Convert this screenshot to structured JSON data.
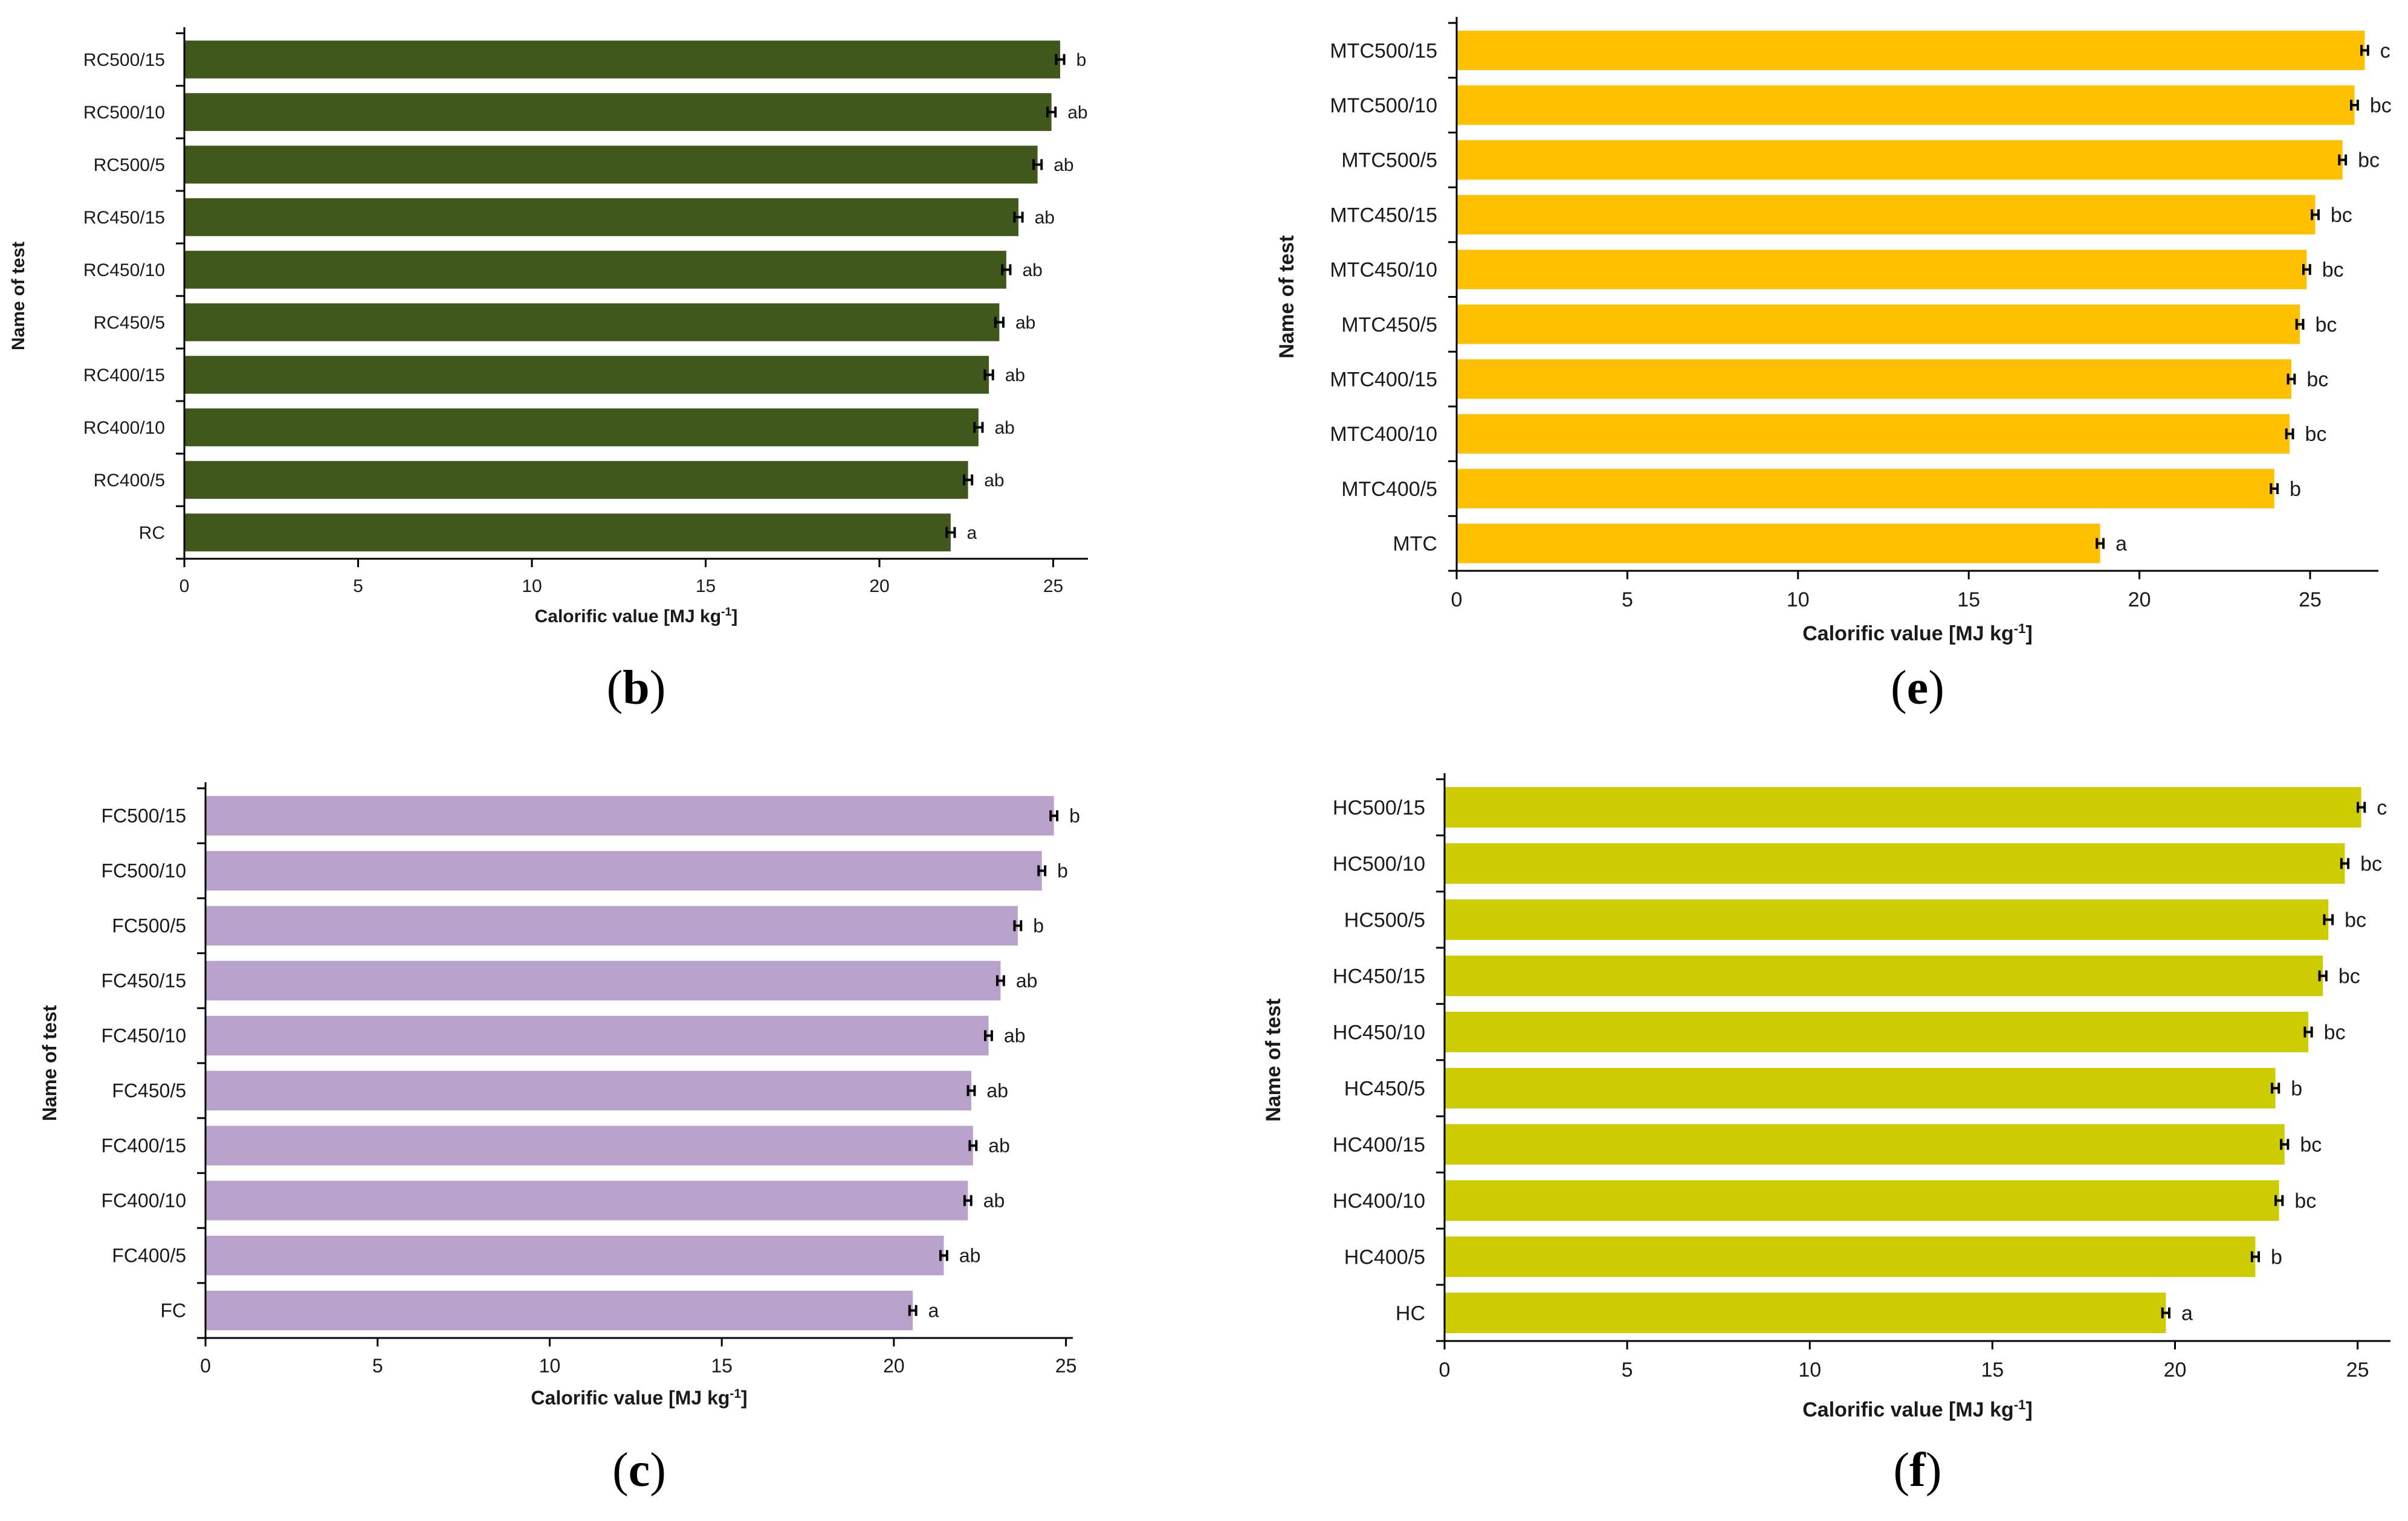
{
  "chart_data": [
    {
      "id": "b",
      "type": "bar",
      "orientation": "horizontal",
      "panel_label": "b",
      "bar_color": "#41581c",
      "categories": [
        "RC500/15",
        "RC500/10",
        "RC500/5",
        "RC450/15",
        "RC450/10",
        "RC450/5",
        "RC400/15",
        "RC400/10",
        "RC400/5",
        "RC"
      ],
      "values": [
        25.2,
        24.95,
        24.55,
        24.0,
        23.65,
        23.45,
        23.15,
        22.85,
        22.55,
        22.05
      ],
      "errors": [
        0.08,
        0.08,
        0.08,
        0.08,
        0.08,
        0.08,
        0.08,
        0.08,
        0.08,
        0.08
      ],
      "letters": [
        "b",
        "ab",
        "ab",
        "ab",
        "ab",
        "ab",
        "ab",
        "ab",
        "ab",
        "a"
      ],
      "xlim": [
        0,
        26
      ],
      "xticks": [
        0,
        5,
        10,
        15,
        20,
        25
      ],
      "xlabel": "Calorific value [MJ kg",
      "xlabel_sup": "-1",
      "xlabel_close": "]",
      "ylabel": "Name of test"
    },
    {
      "id": "e",
      "type": "bar",
      "orientation": "horizontal",
      "panel_label": "e",
      "bar_color": "#ffc000",
      "categories": [
        "MTC500/15",
        "MTC500/10",
        "MTC500/5",
        "MTC450/15",
        "MTC450/10",
        "MTC450/5",
        "MTC400/15",
        "MTC400/10",
        "MTC400/5",
        "MTC"
      ],
      "values": [
        26.6,
        26.3,
        25.95,
        25.15,
        24.9,
        24.7,
        24.45,
        24.4,
        23.95,
        18.85
      ],
      "errors": [
        0.06,
        0.06,
        0.06,
        0.06,
        0.06,
        0.06,
        0.06,
        0.06,
        0.06,
        0.06
      ],
      "letters": [
        "c",
        "bc",
        "bc",
        "bc",
        "bc",
        "bc",
        "bc",
        "bc",
        "b",
        "a"
      ],
      "xlim": [
        0,
        27
      ],
      "xticks": [
        0,
        5,
        10,
        15,
        20,
        25
      ],
      "xlabel": "Calorific value [MJ kg",
      "xlabel_sup": "-1",
      "xlabel_close": "]",
      "ylabel": "Name of test"
    },
    {
      "id": "c",
      "type": "bar",
      "orientation": "horizontal",
      "panel_label": "c",
      "bar_color": "#b8a1cb",
      "categories": [
        "FC500/15",
        "FC500/10",
        "FC500/5",
        "FC450/15",
        "FC450/10",
        "FC450/5",
        "FC400/15",
        "FC400/10",
        "FC400/5",
        "FC"
      ],
      "values": [
        24.65,
        24.3,
        23.6,
        23.1,
        22.75,
        22.25,
        22.3,
        22.15,
        21.45,
        20.55
      ],
      "errors": [
        0.06,
        0.06,
        0.06,
        0.06,
        0.06,
        0.06,
        0.06,
        0.06,
        0.06,
        0.06
      ],
      "letters": [
        "b",
        "b",
        "b",
        "ab",
        "ab",
        "ab",
        "ab",
        "ab",
        "ab",
        "a"
      ],
      "xlim": [
        0,
        25.2
      ],
      "xticks": [
        0,
        5,
        10,
        15,
        20,
        25
      ],
      "xlabel": "Calorific value [MJ kg",
      "xlabel_sup": "-1",
      "xlabel_close": "]",
      "ylabel": "Name of test"
    },
    {
      "id": "f",
      "type": "bar",
      "orientation": "horizontal",
      "panel_label": "f",
      "bar_color": "#cccc00",
      "categories": [
        "HC500/15",
        "HC500/10",
        "HC500/5",
        "HC450/15",
        "HC450/10",
        "HC450/5",
        "HC400/15",
        "HC400/10",
        "HC400/5",
        "HC"
      ],
      "values": [
        25.1,
        24.65,
        24.2,
        24.05,
        23.65,
        22.75,
        23.0,
        22.85,
        22.2,
        19.75
      ],
      "errors": [
        0.06,
        0.06,
        0.08,
        0.06,
        0.06,
        0.06,
        0.06,
        0.06,
        0.06,
        0.06
      ],
      "letters": [
        "c",
        "bc",
        "bc",
        "bc",
        "bc",
        "b",
        "bc",
        "bc",
        "b",
        "a"
      ],
      "xlim": [
        0,
        25.9
      ],
      "xticks": [
        0,
        5,
        10,
        15,
        20,
        25
      ],
      "xlabel": "Calorific value [MJ kg",
      "xlabel_sup": "-1",
      "xlabel_close": "]",
      "ylabel": "Name of test"
    }
  ]
}
